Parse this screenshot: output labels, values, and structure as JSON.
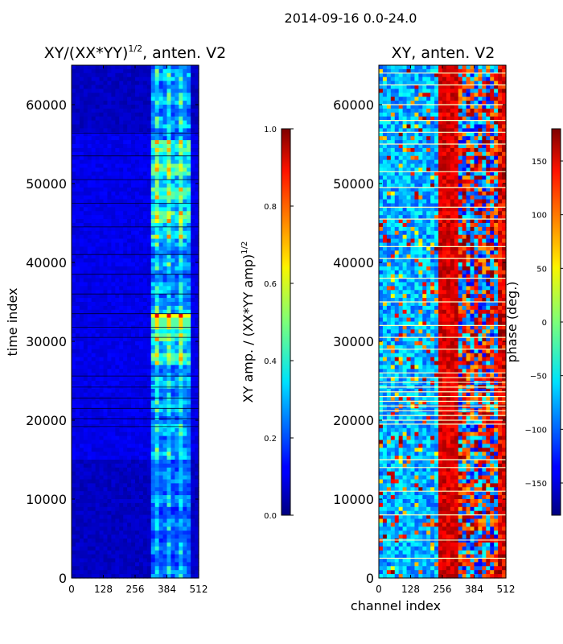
{
  "figure": {
    "suptitle": "2014-09-16 0.0-24.0",
    "xlabel": "channel index"
  },
  "chart_data": [
    {
      "type": "heatmap",
      "title": "XY/(XX*YY)",
      "title_superscript": "1/2",
      "title_suffix": ", anten. V2",
      "xlabel": "",
      "ylabel": "time index",
      "xlim": [
        0,
        512
      ],
      "ylim": [
        0,
        65000
      ],
      "x_ticks": [
        "0",
        "128",
        "256",
        "384",
        "512"
      ],
      "x_tick_values": [
        0,
        128,
        256,
        384,
        512
      ],
      "y_ticks": [
        "0",
        "10000",
        "20000",
        "30000",
        "40000",
        "50000",
        "60000"
      ],
      "y_tick_values": [
        0,
        10000,
        20000,
        30000,
        40000,
        50000,
        60000
      ],
      "colormap": "jet",
      "colorbar": {
        "label": "XY amp. / (XX*YY amp)",
        "label_superscript": "1/2",
        "range": [
          0.0,
          1.0
        ],
        "ticks": [
          "0.0",
          "0.2",
          "0.4",
          "0.6",
          "0.8",
          "1.0"
        ],
        "tick_values": [
          0.0,
          0.2,
          0.4,
          0.6,
          0.8,
          1.0
        ]
      },
      "notes": "Mostly low (~0.1) except channels ~320-480 showing a blocky high-amplitude pattern; strongest near time index ~32000 and ~44000-55000."
    },
    {
      "type": "heatmap",
      "title": "XY, anten. V2",
      "xlabel": "channel index",
      "ylabel": "",
      "xlim": [
        0,
        512
      ],
      "ylim": [
        0,
        65000
      ],
      "x_ticks": [
        "0",
        "128",
        "256",
        "384",
        "512"
      ],
      "x_tick_values": [
        0,
        128,
        256,
        384,
        512
      ],
      "y_ticks": [
        "0",
        "10000",
        "20000",
        "30000",
        "40000",
        "50000",
        "60000"
      ],
      "y_tick_values": [
        0,
        10000,
        20000,
        30000,
        40000,
        50000,
        60000
      ],
      "colormap": "jet",
      "colorbar": {
        "label": "phase (deg.)",
        "range": [
          -180,
          180
        ],
        "ticks": [
          "150",
          "100",
          "50",
          "0",
          "−50",
          "−100",
          "−150"
        ],
        "tick_values": [
          150,
          100,
          50,
          0,
          -50,
          -100,
          -150
        ]
      },
      "notes": "Phase in degrees; noisy pattern with a dark-red band near channels ~240-320 and blocky features from ~320-480; many horizontal gap lines between 19000 and 26000."
    }
  ]
}
